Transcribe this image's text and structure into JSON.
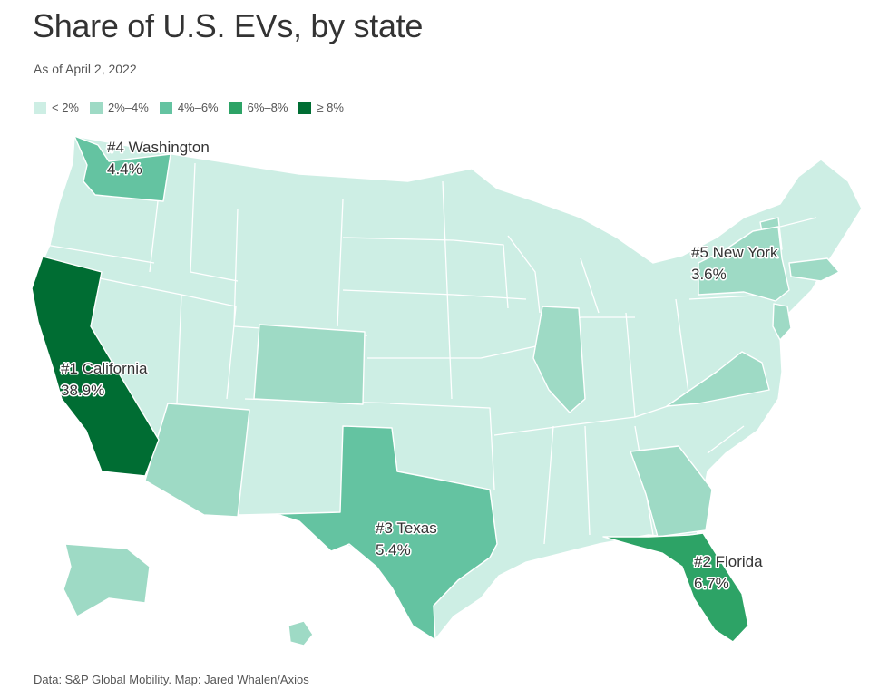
{
  "title": "Share of U.S. EVs, by state",
  "subtitle": "As of April 2, 2022",
  "legend": [
    {
      "label": "< 2%",
      "color": "#cdeee4"
    },
    {
      "label": "2%–4%",
      "color": "#9edac5"
    },
    {
      "label": "4%–6%",
      "color": "#64c3a1"
    },
    {
      "label": "6%–8%",
      "color": "#2da366"
    },
    {
      "label": "≥ 8%",
      "color": "#006d33"
    }
  ],
  "callouts": {
    "washington": {
      "rank": "#4  Washington",
      "value": "4.4%"
    },
    "new_york": {
      "rank": "#5  New York",
      "value": "3.6%"
    },
    "california": {
      "rank": "#1  California",
      "value": "38.9%"
    },
    "texas": {
      "rank": "#3  Texas",
      "value": "5.4%"
    },
    "florida": {
      "rank": "#2  Florida",
      "value": "6.7%"
    }
  },
  "chart_data": {
    "type": "choropleth",
    "unit": "%",
    "bins": [
      "< 2%",
      "2%–4%",
      "4%–6%",
      "6%–8%",
      "≥ 8%"
    ],
    "labeled_states": [
      {
        "state": "California",
        "rank": 1,
        "value": 38.9
      },
      {
        "state": "Florida",
        "rank": 2,
        "value": 6.7
      },
      {
        "state": "Texas",
        "rank": 3,
        "value": 5.4
      },
      {
        "state": "Washington",
        "rank": 4,
        "value": 4.4
      },
      {
        "state": "New York",
        "rank": 5,
        "value": 3.6
      }
    ]
  },
  "source": "Data: S&P Global Mobility. Map: Jared Whalen/Axios"
}
